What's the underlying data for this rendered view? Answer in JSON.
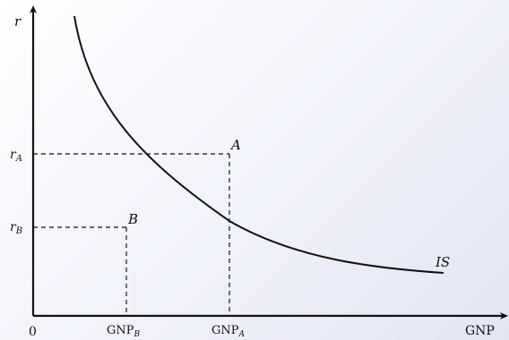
{
  "axes": {
    "y_label": "r",
    "x_label": "GNP",
    "origin": "0"
  },
  "ticks": {
    "r_a_base": "r",
    "r_a_sub": "A",
    "r_b_base": "r",
    "r_b_sub": "B",
    "gnp_b_base": "GNP",
    "gnp_b_sub": "B",
    "gnp_a_base": "GNP",
    "gnp_a_sub": "A"
  },
  "points": {
    "a": "A",
    "b": "B"
  },
  "curve": {
    "label": "IS"
  },
  "colors": {
    "ink": "#111111"
  }
}
